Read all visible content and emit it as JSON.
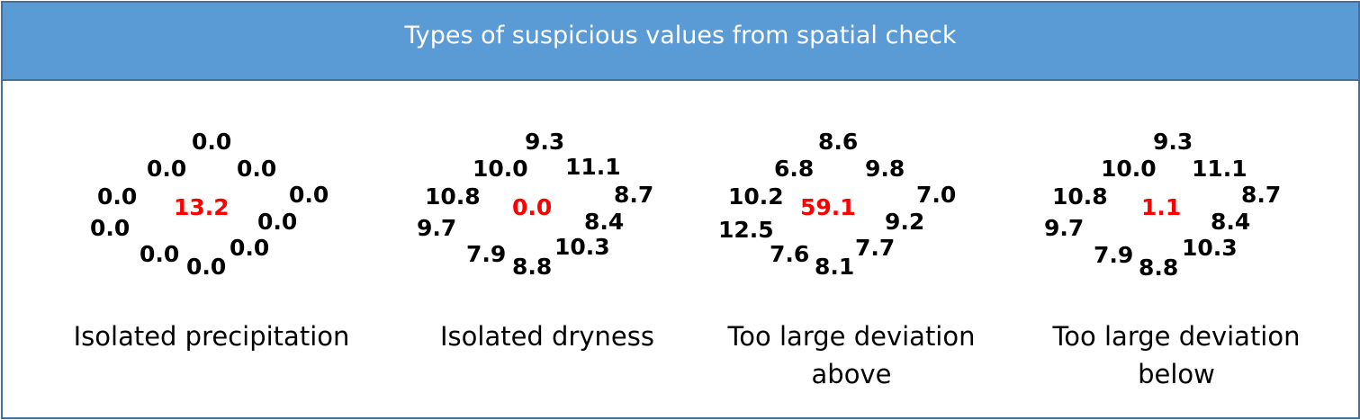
{
  "title": "Types of suspicious values from spatial check",
  "highlight_color": "#ff0000",
  "panels": [
    {
      "caption_lines": [
        "Isolated precipitation"
      ],
      "center": "13.2",
      "neighbors": [
        "0.0",
        "0.0",
        "0.0",
        "0.0",
        "0.0",
        "0.0",
        "0.0",
        "0.0",
        "0.0",
        "0.0"
      ]
    },
    {
      "caption_lines": [
        "Isolated dryness"
      ],
      "center": "0.0",
      "neighbors": [
        "9.3",
        "10.0",
        "11.1",
        "10.8",
        "8.7",
        "9.7",
        "8.4",
        "7.9",
        "8.8",
        "10.3"
      ]
    },
    {
      "caption_lines": [
        "Too large deviation",
        "above"
      ],
      "center": "59.1",
      "neighbors": [
        "8.6",
        "6.8",
        "9.8",
        "10.2",
        "7.0",
        "12.5",
        "9.2",
        "7.6",
        "8.1",
        "7.7"
      ]
    },
    {
      "caption_lines": [
        "Too large deviation",
        "below"
      ],
      "center": "1.1",
      "neighbors": [
        "9.3",
        "10.0",
        "11.1",
        "10.8",
        "8.7",
        "9.7",
        "8.4",
        "7.9",
        "8.8",
        "10.3"
      ]
    }
  ]
}
